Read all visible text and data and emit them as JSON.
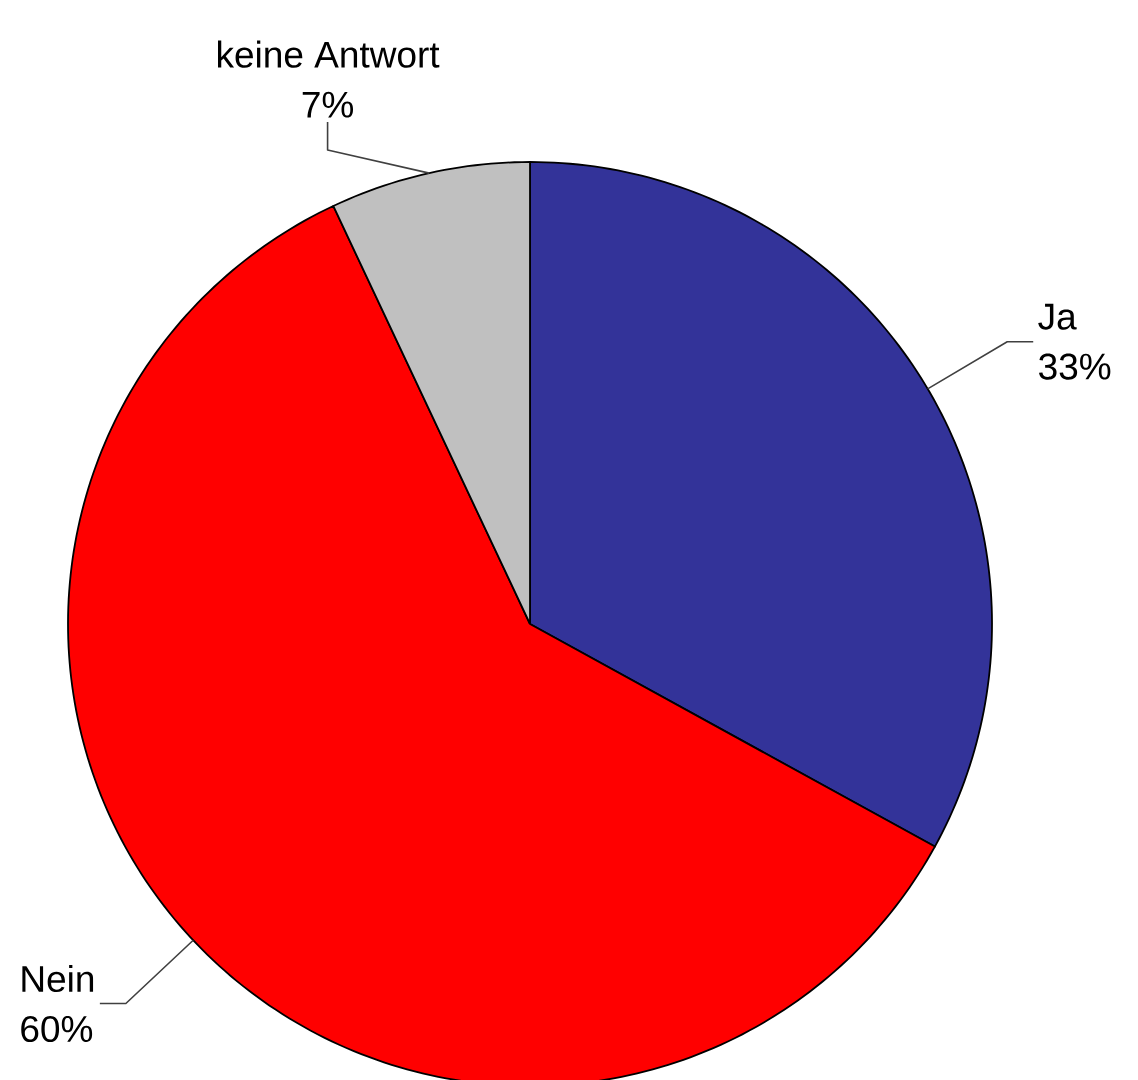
{
  "chart_data": {
    "type": "pie",
    "categories": [
      "Ja",
      "Nein",
      "keine Antwort"
    ],
    "values": [
      33,
      60,
      7
    ],
    "colors": [
      "#333399",
      "#ff0000",
      "#c0c0c0"
    ],
    "value_labels": [
      "33%",
      "60%",
      "7%"
    ]
  }
}
